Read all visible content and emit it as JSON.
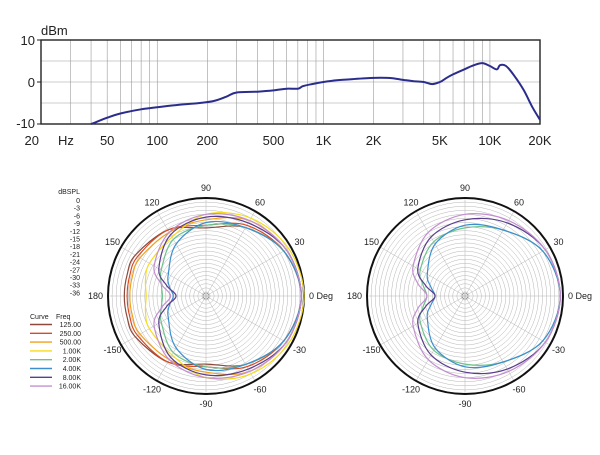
{
  "chart_data": [
    {
      "type": "line",
      "xscale": "log",
      "ylabel": "dBm",
      "ylim": [
        -10,
        10
      ],
      "yticks": [
        "10",
        "0",
        "-10"
      ],
      "xlim": [
        20,
        20000
      ],
      "xticks": [
        {
          "v": 20,
          "label": "20"
        },
        {
          "v": 50,
          "label": "50"
        },
        {
          "v": 100,
          "label": "100"
        },
        {
          "v": 200,
          "label": "200"
        },
        {
          "v": 500,
          "label": "500"
        },
        {
          "v": 1000,
          "label": "1K"
        },
        {
          "v": 2000,
          "label": "2K"
        },
        {
          "v": 5000,
          "label": "5K"
        },
        {
          "v": 10000,
          "label": "10K"
        },
        {
          "v": 20000,
          "label": "20K"
        }
      ],
      "xunit": "Hz",
      "grid": true,
      "series": [
        {
          "color": "#2b2d8c",
          "x": [
            40,
            50,
            60,
            80,
            100,
            130,
            180,
            220,
            260,
            300,
            400,
            500,
            600,
            700,
            750,
            850,
            1000,
            1200,
            1500,
            1800,
            2200,
            2600,
            3000,
            3500,
            4000,
            4500,
            5000,
            5500,
            6000,
            7000,
            8000,
            9000,
            10000,
            11000,
            11500,
            12500,
            14000,
            16000,
            18000,
            20000
          ],
          "y": [
            -10,
            -8.5,
            -7.5,
            -6.5,
            -6,
            -5.5,
            -5,
            -4.5,
            -3.5,
            -2.5,
            -2.3,
            -2,
            -1.6,
            -1.6,
            -1,
            -0.5,
            0,
            0.4,
            0.7,
            0.9,
            1,
            0.9,
            0.5,
            0.2,
            0,
            -0.5,
            0,
            1,
            1.8,
            3,
            4,
            4.5,
            3.8,
            3,
            4,
            3.8,
            1.5,
            -2,
            -6,
            -9
          ]
        }
      ]
    },
    {
      "type": "polar",
      "rlabel": "dBSPL",
      "rticks": [
        "0",
        "-3",
        "-6",
        "-9",
        "-12",
        "-15",
        "-18",
        "-21",
        "-24",
        "-27",
        "-30",
        "-33",
        "-36"
      ],
      "rlim": [
        -36,
        0
      ],
      "angle_labels": {
        "0": "0 Deg",
        "30": "30",
        "60": "60",
        "90": "90",
        "120": "120",
        "150": "150",
        "180": "180",
        "-150": "-150",
        "-120": "-120",
        "-90": "-90",
        "-60": "-60",
        "-30": "-30"
      },
      "legend_headers": [
        "Curve",
        "Freq"
      ],
      "legend": [
        {
          "freq": "125.00",
          "color": "#8b4a3c"
        },
        {
          "freq": "250.00",
          "color": "#d84a22"
        },
        {
          "freq": "500.00",
          "color": "#f0a11b"
        },
        {
          "freq": "1.00K",
          "color": "#f6dc1a"
        },
        {
          "freq": "2.00K",
          "color": "#6fc28d"
        },
        {
          "freq": "4.00K",
          "color": "#3b8fcf"
        },
        {
          "freq": "8.00K",
          "color": "#5a3d8c"
        },
        {
          "freq": "16.00K",
          "color": "#c48fd0"
        }
      ],
      "series": [
        {
          "freq": "125.00",
          "color": "#8b4a3c",
          "angles": [
            0,
            30,
            60,
            90,
            120,
            150,
            165,
            180,
            -165,
            -150,
            -120,
            -90,
            -60,
            -30
          ],
          "values": [
            -1,
            -3,
            -7,
            -11,
            -8,
            -6,
            -6,
            -6,
            -6,
            -6,
            -8,
            -11,
            -7,
            -3
          ]
        },
        {
          "freq": "250.00",
          "color": "#d84a22",
          "angles": [
            0,
            30,
            60,
            90,
            120,
            150,
            165,
            180,
            -165,
            -150,
            -120,
            -90,
            -60,
            -30
          ],
          "values": [
            -1,
            -3,
            -6,
            -10,
            -8,
            -7,
            -7,
            -7,
            -7,
            -7,
            -8,
            -10,
            -6,
            -3
          ]
        },
        {
          "freq": "500.00",
          "color": "#f0a11b",
          "angles": [
            0,
            30,
            60,
            90,
            120,
            150,
            165,
            180,
            -165,
            -150,
            -120,
            -90,
            -60,
            -30
          ],
          "values": [
            -1,
            -2,
            -4,
            -8,
            -9,
            -8,
            -8,
            -8,
            -8,
            -8,
            -9,
            -8,
            -4,
            -2
          ]
        },
        {
          "freq": "1.00K",
          "color": "#f6dc1a",
          "angles": [
            0,
            30,
            60,
            90,
            120,
            150,
            165,
            180,
            -165,
            -150,
            -120,
            -90,
            -60,
            -30
          ],
          "values": [
            0,
            -1,
            -3,
            -6,
            -11,
            -12,
            -13,
            -14,
            -13,
            -12,
            -11,
            -6,
            -3,
            -1
          ]
        },
        {
          "freq": "2.00K",
          "color": "#6fc28d",
          "angles": [
            0,
            30,
            60,
            90,
            120,
            150,
            165,
            180,
            -165,
            -150,
            -120,
            -90,
            -60,
            -30
          ],
          "values": [
            -1,
            -3,
            -7,
            -10,
            -12,
            -17,
            -19,
            -20,
            -19,
            -17,
            -12,
            -10,
            -7,
            -3
          ]
        },
        {
          "freq": "4.00K",
          "color": "#3b8fcf",
          "angles": [
            0,
            30,
            60,
            90,
            120,
            150,
            165,
            180,
            -165,
            -150,
            -120,
            -90,
            -60,
            -30
          ],
          "values": [
            -1,
            -3,
            -7,
            -9,
            -14,
            -20,
            -22,
            -24,
            -22,
            -20,
            -14,
            -9,
            -7,
            -3
          ]
        },
        {
          "freq": "8.00K",
          "color": "#5a3d8c",
          "angles": [
            0,
            30,
            60,
            90,
            120,
            150,
            165,
            180,
            -165,
            -150,
            -120,
            -90,
            -60,
            -30
          ],
          "values": [
            -1,
            -2,
            -5,
            -7,
            -10,
            -16,
            -21,
            -25,
            -21,
            -16,
            -10,
            -7,
            -5,
            -2
          ]
        },
        {
          "freq": "16.00K",
          "color": "#c48fd0",
          "angles": [
            0,
            30,
            60,
            90,
            120,
            150,
            165,
            180,
            -165,
            -150,
            -120,
            -90,
            -60,
            -30
          ],
          "values": [
            -1,
            -2,
            -4,
            -6,
            -9,
            -14,
            -19,
            -23,
            -19,
            -14,
            -9,
            -6,
            -4,
            -2
          ]
        }
      ]
    },
    {
      "type": "polar",
      "rlim": [
        -36,
        0
      ],
      "angle_labels": {
        "0": "0 Deg",
        "30": "30",
        "60": "60",
        "90": "90",
        "120": "120",
        "150": "150",
        "180": "180",
        "-150": "-150",
        "-120": "-120",
        "-90": "-90",
        "-60": "-60",
        "-30": "-30"
      },
      "series": [
        {
          "freq": "2.00K",
          "color": "#6fc28d",
          "angles": [
            0,
            30,
            60,
            90,
            120,
            150,
            165,
            180,
            -165,
            -150,
            -120,
            -90,
            -60,
            -30
          ],
          "values": [
            -1,
            -3,
            -8,
            -11,
            -13,
            -17,
            -20,
            -22,
            -20,
            -17,
            -13,
            -11,
            -8,
            -3
          ]
        },
        {
          "freq": "4.00K",
          "color": "#3b8fcf",
          "angles": [
            0,
            30,
            60,
            90,
            120,
            150,
            165,
            180,
            -165,
            -150,
            -120,
            -90,
            -60,
            -30
          ],
          "values": [
            -1,
            -3,
            -8,
            -10,
            -14,
            -20,
            -23,
            -25,
            -23,
            -20,
            -14,
            -10,
            -8,
            -3
          ]
        },
        {
          "freq": "8.00K",
          "color": "#5a3d8c",
          "angles": [
            0,
            30,
            60,
            90,
            120,
            150,
            165,
            180,
            -165,
            -150,
            -120,
            -90,
            -60,
            -30
          ],
          "values": [
            -1,
            -2,
            -5,
            -8,
            -11,
            -16,
            -21,
            -25,
            -21,
            -16,
            -11,
            -8,
            -5,
            -2
          ]
        },
        {
          "freq": "16.00K",
          "color": "#c48fd0",
          "angles": [
            0,
            30,
            60,
            90,
            120,
            150,
            165,
            180,
            -165,
            -150,
            -120,
            -90,
            -60,
            -30
          ],
          "values": [
            -1,
            -2,
            -4,
            -6,
            -9,
            -14,
            -18,
            -22,
            -18,
            -14,
            -9,
            -6,
            -4,
            -2
          ]
        }
      ]
    }
  ]
}
